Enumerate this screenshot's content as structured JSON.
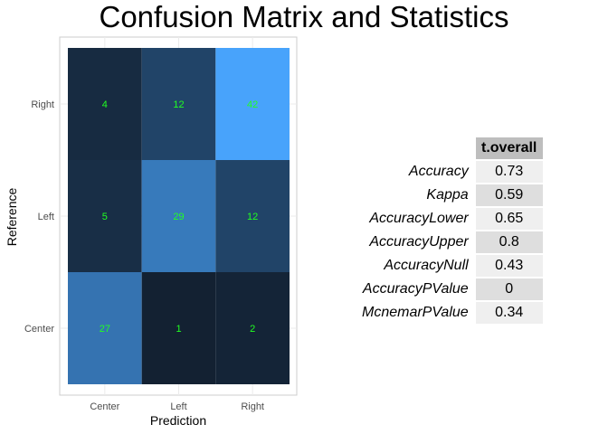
{
  "title": "Confusion Matrix and Statistics",
  "chart_data": {
    "type": "heatmap",
    "xlabel": "Prediction",
    "ylabel": "Reference",
    "x_categories": [
      "Center",
      "Left",
      "Right"
    ],
    "y_categories": [
      "Center",
      "Left",
      "Right"
    ],
    "cells": [
      {
        "prediction": "Center",
        "reference": "Right",
        "value": 4
      },
      {
        "prediction": "Left",
        "reference": "Right",
        "value": 12
      },
      {
        "prediction": "Right",
        "reference": "Right",
        "value": 42
      },
      {
        "prediction": "Center",
        "reference": "Left",
        "value": 5
      },
      {
        "prediction": "Left",
        "reference": "Left",
        "value": 29
      },
      {
        "prediction": "Right",
        "reference": "Left",
        "value": 12
      },
      {
        "prediction": "Center",
        "reference": "Center",
        "value": 27
      },
      {
        "prediction": "Left",
        "reference": "Center",
        "value": 1
      },
      {
        "prediction": "Right",
        "reference": "Center",
        "value": 2
      }
    ],
    "color_low": "#132132",
    "color_high": "#48a3fb",
    "label_color": "#21ff21",
    "grid": true
  },
  "stats_table": {
    "header": "t.overall",
    "rows": [
      {
        "name": "Accuracy",
        "value": "0.73"
      },
      {
        "name": "Kappa",
        "value": "0.59"
      },
      {
        "name": "AccuracyLower",
        "value": "0.65"
      },
      {
        "name": "AccuracyUpper",
        "value": "0.8"
      },
      {
        "name": "AccuracyNull",
        "value": "0.43"
      },
      {
        "name": "AccuracyPValue",
        "value": "0"
      },
      {
        "name": "McnemarPValue",
        "value": "0.34"
      }
    ]
  }
}
